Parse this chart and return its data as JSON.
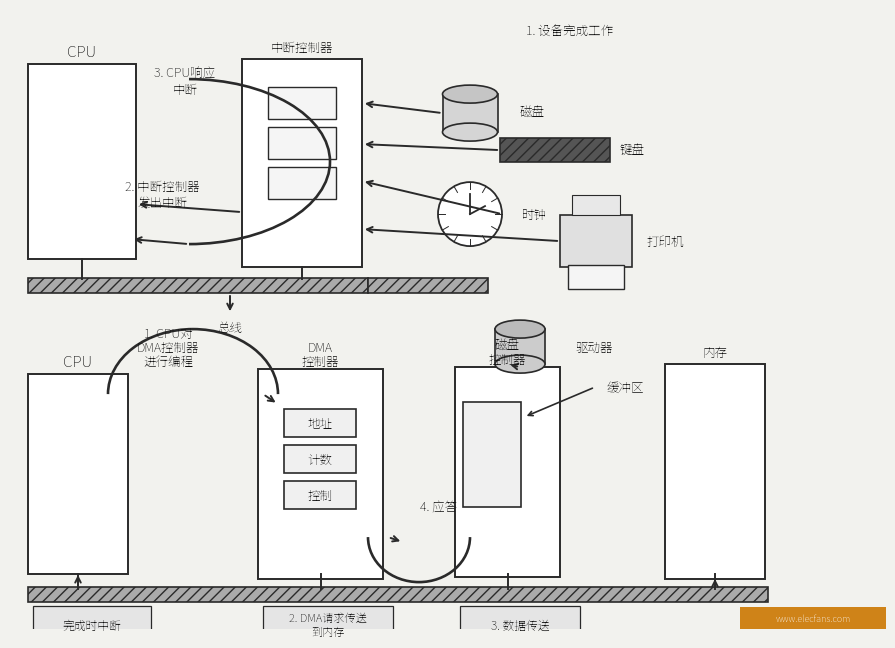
{
  "bg": "#f2f2ee",
  "lc": "#2a2a2a",
  "diagram1": {
    "cpu_label": "CPU",
    "ic_label": "中断控制器",
    "step3": "3. CPU响应\n中断",
    "step2": "2. 中断控制器\n发出中断",
    "step1": "1. 设备完成工作",
    "disk_label": "磁盘",
    "keyboard_label": "键盘",
    "clock_label": "时钟",
    "printer_label": "打印机",
    "bus_label": "总线"
  },
  "diagram2": {
    "cpu_label": "CPU",
    "step1a": "1. CPU对",
    "step1b": "DMA控制器",
    "step1c": "进行编程",
    "dma_label_a": "DMA",
    "dma_label_b": "控制器",
    "disk_ctrl_a": "磁盘",
    "disk_ctrl_b": "控制器",
    "buffer_label": "缓冲区",
    "memory_label": "内存",
    "driver_label": "驱动器",
    "addr_label": "地址",
    "count_label": "计数",
    "ctrl_label": "控制",
    "step4": "4. 应答",
    "step2": "2. DMA请求传送\n到内存",
    "step3": "3. 数据传送",
    "done_label": "完成时中断"
  }
}
